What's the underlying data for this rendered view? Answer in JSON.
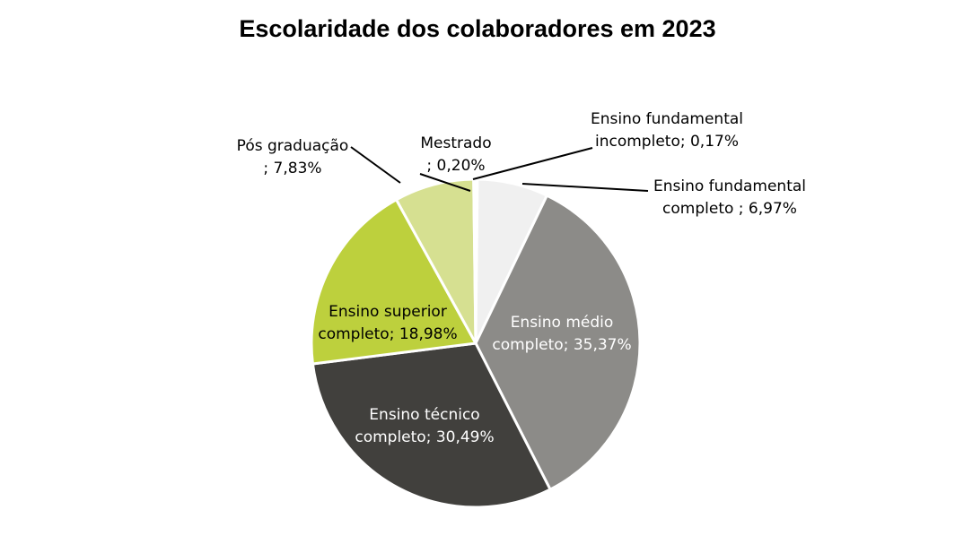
{
  "chart_data": {
    "type": "pie",
    "title": "Escolaridade dos colaboradores em 2023",
    "slices": [
      {
        "name": "Ensino fundamental incompleto",
        "value": 0.17,
        "color": "#ffffff",
        "label_lines": [
          "Ensino fundamental",
          "incompleto; 0,17%"
        ]
      },
      {
        "name": "Ensino fundamental completo",
        "value": 6.97,
        "color": "#f0f0f0",
        "label_lines": [
          "Ensino fundamental",
          "completo         ; 6,97%"
        ]
      },
      {
        "name": "Ensino médio completo",
        "value": 35.37,
        "color": "#8c8b88",
        "label_lines": [
          "Ensino médio",
          "completo; 35,37%"
        ]
      },
      {
        "name": "Ensino técnico completo",
        "value": 30.49,
        "color": "#41403d",
        "label_lines": [
          "Ensino técnico",
          "completo; 30,49%"
        ]
      },
      {
        "name": "Ensino superior completo",
        "value": 18.98,
        "color": "#bdd03d",
        "label_lines": [
          "Ensino superior",
          "completo; 18,98%"
        ]
      },
      {
        "name": "Pós graduação",
        "value": 7.83,
        "color": "#d6e091",
        "label_lines": [
          "Pós graduação",
          "; 7,83%"
        ]
      },
      {
        "name": "Mestrado",
        "value": 0.2,
        "color": "#ffffff",
        "label_lines": [
          "Mestrado",
          "; 0,20%"
        ]
      }
    ],
    "legend": "none",
    "data_labels": "category name and percentage"
  }
}
